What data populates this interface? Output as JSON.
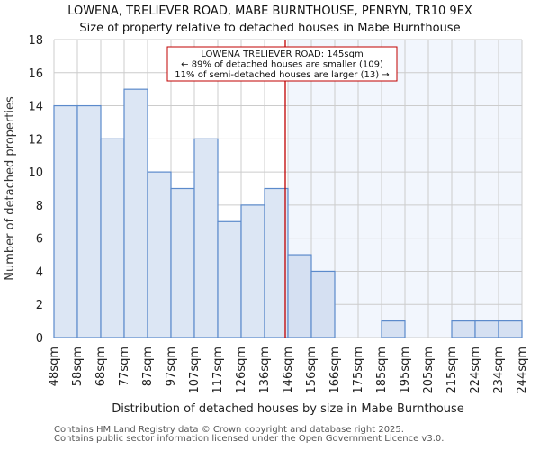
{
  "header": {
    "title": "LOWENA, TRELIEVER ROAD, MABE BURNTHOUSE, PENRYN, TR10 9EX",
    "subtitle": "Size of property relative to detached houses in Mabe Burnthouse"
  },
  "annotation": {
    "line1": "LOWENA TRELIEVER ROAD: 145sqm",
    "line2": "← 89% of detached houses are smaller (109)",
    "line3": "11% of semi-detached houses are larger (13) →"
  },
  "footer": {
    "line1": "Contains HM Land Registry data © Crown copyright and database right 2025.",
    "line2": "Contains public sector information licensed under the Open Government Licence v3.0."
  },
  "colors": {
    "bar_fill": "#dce6f4",
    "bar_fill_highlight": "#d5e0f2",
    "bar_stroke": "#5b8acb",
    "highlight_bg": "#f2f6fd",
    "marker_line": "#c00000",
    "grid": "#cccccc"
  },
  "chart_data": {
    "type": "bar",
    "title": "LOWENA, TRELIEVER ROAD, MABE BURNTHOUSE, PENRYN, TR10 9EX",
    "subtitle": "Size of property relative to detached houses in Mabe Burnthouse",
    "xlabel": "Distribution of detached houses by size in Mabe Burnthouse",
    "ylabel": "Number of detached properties",
    "categories": [
      "48sqm",
      "58sqm",
      "68sqm",
      "77sqm",
      "87sqm",
      "97sqm",
      "107sqm",
      "117sqm",
      "126sqm",
      "136sqm",
      "146sqm",
      "156sqm",
      "166sqm",
      "175sqm",
      "185sqm",
      "195sqm",
      "205sqm",
      "215sqm",
      "224sqm",
      "234sqm",
      "244sqm"
    ],
    "values": [
      14,
      14,
      12,
      15,
      10,
      9,
      12,
      7,
      8,
      9,
      5,
      4,
      0,
      0,
      1,
      0,
      0,
      1,
      1,
      1
    ],
    "ylim": [
      0,
      18
    ],
    "yticks": [
      0,
      2,
      4,
      6,
      8,
      10,
      12,
      14,
      16,
      18
    ],
    "grid": true,
    "marker": {
      "value_sqm": 145,
      "label": "LOWENA TRELIEVER ROAD: 145sqm"
    }
  }
}
